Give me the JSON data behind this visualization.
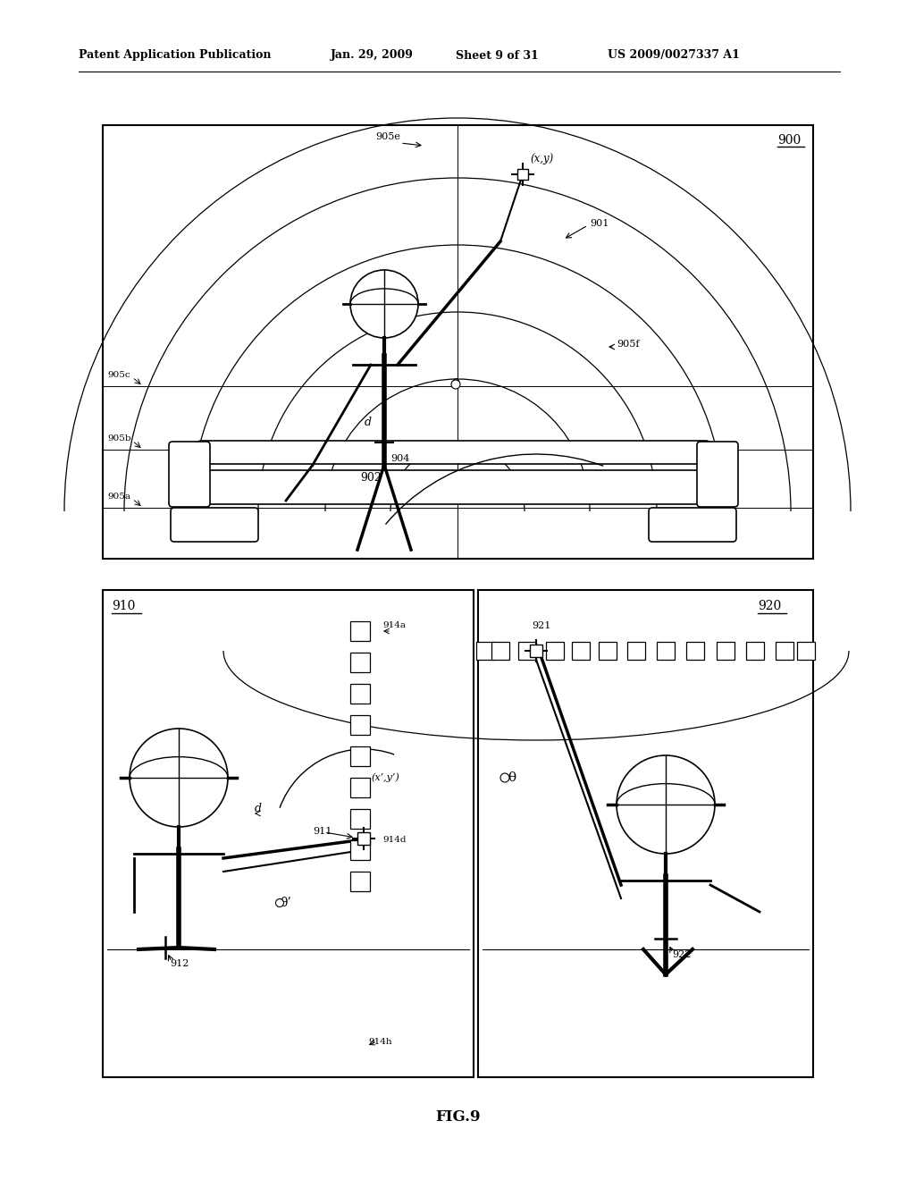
{
  "bg_color": "#ffffff",
  "header_text": "Patent Application Publication",
  "header_date": "Jan. 29, 2009  Sheet 9 of 31",
  "header_patent": "US 2009/0027337 A1",
  "fig_label": "FIG.9"
}
